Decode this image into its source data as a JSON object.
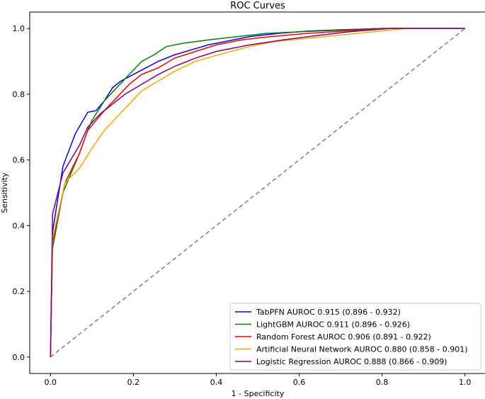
{
  "chart_data": {
    "type": "line",
    "title": "ROC Curves",
    "xlabel": "1 - Specificity",
    "ylabel": "Sensitivity",
    "xlim": [
      -0.05,
      1.05
    ],
    "ylim": [
      -0.05,
      1.05
    ],
    "xticks": [
      0.0,
      0.2,
      0.4,
      0.6,
      0.8,
      1.0
    ],
    "yticks": [
      0.0,
      0.2,
      0.4,
      0.6,
      0.8,
      1.0
    ],
    "xtick_labels": [
      "0.0",
      "0.2",
      "0.4",
      "0.6",
      "0.8",
      "1.0"
    ],
    "ytick_labels": [
      "0.0",
      "0.2",
      "0.4",
      "0.6",
      "0.8",
      "1.0"
    ],
    "legend_position": "bottom-right",
    "reference_line": {
      "x": [
        0,
        1
      ],
      "y": [
        0,
        1
      ],
      "color": "#808080",
      "style": "dashed"
    },
    "series": [
      {
        "name": "TabPFN AUROC 0.915 (0.896 - 0.932)",
        "color": "#0000ff",
        "x": [
          0,
          0.005,
          0.005,
          0.03,
          0.03,
          0.06,
          0.06,
          0.09,
          0.09,
          0.11,
          0.11,
          0.13,
          0.13,
          0.15,
          0.15,
          0.17,
          0.17,
          0.2,
          0.2,
          0.23,
          0.23,
          0.26,
          0.26,
          0.3,
          0.3,
          0.34,
          0.34,
          0.38,
          0.38,
          0.42,
          0.42,
          0.48,
          0.48,
          0.55,
          0.55,
          0.62,
          0.62,
          0.7,
          0.7,
          0.8,
          0.8,
          1.0
        ],
        "y": [
          0,
          0.38,
          0.38,
          0.58,
          0.58,
          0.68,
          0.68,
          0.745,
          0.745,
          0.75,
          0.75,
          0.78,
          0.78,
          0.82,
          0.82,
          0.84,
          0.84,
          0.86,
          0.86,
          0.88,
          0.88,
          0.9,
          0.9,
          0.92,
          0.92,
          0.935,
          0.935,
          0.95,
          0.95,
          0.96,
          0.96,
          0.975,
          0.975,
          0.985,
          0.985,
          0.992,
          0.992,
          0.996,
          0.996,
          1.0,
          1.0,
          1.0
        ]
      },
      {
        "name": "LightGBM AUROC 0.911 (0.896 - 0.926)",
        "color": "#008000",
        "x": [
          0,
          0.005,
          0.005,
          0.03,
          0.03,
          0.05,
          0.05,
          0.07,
          0.07,
          0.09,
          0.09,
          0.1,
          0.1,
          0.13,
          0.13,
          0.16,
          0.16,
          0.19,
          0.19,
          0.22,
          0.22,
          0.25,
          0.25,
          0.28,
          0.28,
          0.32,
          0.32,
          0.38,
          0.38,
          0.45,
          0.45,
          0.52,
          0.52,
          0.6,
          0.6,
          0.7,
          0.7,
          0.8,
          0.8,
          1.0
        ],
        "y": [
          0,
          0.33,
          0.33,
          0.5,
          0.5,
          0.56,
          0.56,
          0.62,
          0.62,
          0.69,
          0.69,
          0.72,
          0.72,
          0.78,
          0.78,
          0.82,
          0.82,
          0.86,
          0.86,
          0.9,
          0.9,
          0.92,
          0.92,
          0.945,
          0.945,
          0.955,
          0.955,
          0.965,
          0.965,
          0.975,
          0.975,
          0.985,
          0.985,
          0.99,
          0.99,
          0.995,
          0.995,
          1.0,
          1.0,
          1.0
        ]
      },
      {
        "name": "Random Forest AUROC 0.906 (0.891 - 0.922)",
        "color": "#ff0000",
        "x": [
          0,
          0.005,
          0.005,
          0.035,
          0.035,
          0.07,
          0.07,
          0.09,
          0.09,
          0.11,
          0.11,
          0.13,
          0.13,
          0.16,
          0.16,
          0.19,
          0.19,
          0.22,
          0.22,
          0.26,
          0.26,
          0.3,
          0.3,
          0.35,
          0.35,
          0.4,
          0.4,
          0.46,
          0.46,
          0.53,
          0.53,
          0.62,
          0.62,
          0.72,
          0.72,
          0.82,
          0.82,
          1.0
        ],
        "y": [
          0,
          0.35,
          0.35,
          0.53,
          0.53,
          0.62,
          0.62,
          0.69,
          0.69,
          0.72,
          0.72,
          0.75,
          0.75,
          0.79,
          0.79,
          0.83,
          0.83,
          0.86,
          0.86,
          0.88,
          0.88,
          0.91,
          0.91,
          0.93,
          0.93,
          0.95,
          0.95,
          0.965,
          0.965,
          0.975,
          0.975,
          0.985,
          0.985,
          0.993,
          0.993,
          1.0,
          1.0,
          1.0
        ]
      },
      {
        "name": "Artificial Neural Network AUROC 0.880 (0.858 - 0.901)",
        "color": "#ffa500",
        "x": [
          0,
          0.005,
          0.005,
          0.035,
          0.035,
          0.07,
          0.07,
          0.1,
          0.1,
          0.13,
          0.13,
          0.16,
          0.16,
          0.19,
          0.19,
          0.22,
          0.22,
          0.26,
          0.26,
          0.3,
          0.3,
          0.35,
          0.35,
          0.42,
          0.42,
          0.48,
          0.48,
          0.54,
          0.54,
          0.62,
          0.62,
          0.7,
          0.7,
          0.78,
          0.78,
          0.86,
          0.86,
          1.0
        ],
        "y": [
          0,
          0.36,
          0.36,
          0.53,
          0.53,
          0.575,
          0.575,
          0.635,
          0.635,
          0.69,
          0.69,
          0.73,
          0.73,
          0.77,
          0.77,
          0.81,
          0.81,
          0.84,
          0.84,
          0.87,
          0.87,
          0.9,
          0.9,
          0.925,
          0.925,
          0.945,
          0.945,
          0.96,
          0.96,
          0.97,
          0.97,
          0.98,
          0.98,
          0.99,
          0.99,
          1.0,
          1.0,
          1.0
        ]
      },
      {
        "name": "Logistic Regression AUROC 0.888 (0.866 - 0.909)",
        "color": "#800080",
        "x": [
          0,
          0.005,
          0.005,
          0.03,
          0.03,
          0.07,
          0.07,
          0.09,
          0.09,
          0.12,
          0.12,
          0.15,
          0.15,
          0.18,
          0.18,
          0.22,
          0.22,
          0.26,
          0.26,
          0.3,
          0.3,
          0.35,
          0.35,
          0.4,
          0.4,
          0.48,
          0.48,
          0.56,
          0.56,
          0.64,
          0.64,
          0.72,
          0.72,
          0.82,
          0.82,
          1.0
        ],
        "y": [
          0,
          0.435,
          0.435,
          0.56,
          0.56,
          0.645,
          0.645,
          0.7,
          0.7,
          0.74,
          0.74,
          0.77,
          0.77,
          0.8,
          0.8,
          0.83,
          0.83,
          0.86,
          0.86,
          0.885,
          0.885,
          0.91,
          0.91,
          0.93,
          0.93,
          0.95,
          0.95,
          0.965,
          0.965,
          0.978,
          0.978,
          0.99,
          0.99,
          1.0,
          1.0,
          1.0
        ]
      }
    ]
  }
}
